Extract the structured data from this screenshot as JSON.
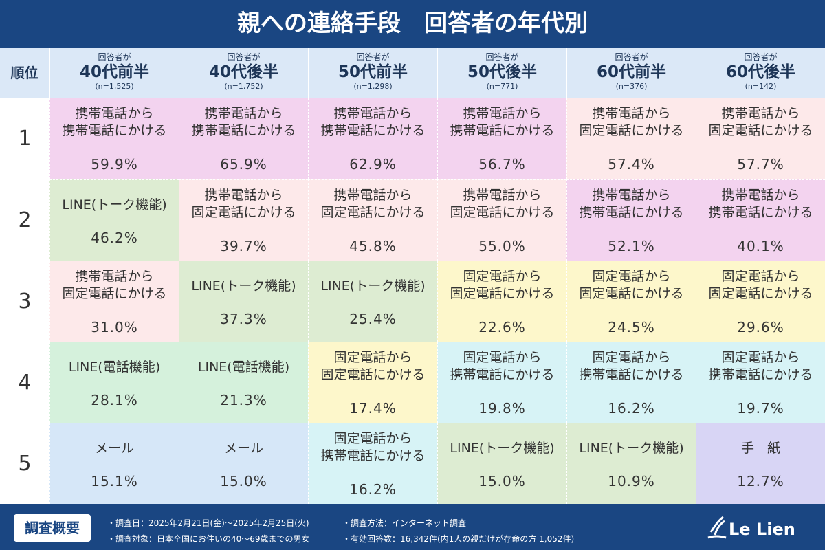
{
  "title": "親への連絡手段　回答者の年代別",
  "table": {
    "rank_header": "順位",
    "columns": [
      {
        "pre": "回答者が",
        "label": "40代前半",
        "n": "(n=1,525)"
      },
      {
        "pre": "回答者が",
        "label": "40代後半",
        "n": "(n=1,752)"
      },
      {
        "pre": "回答者が",
        "label": "50代前半",
        "n": "(n=1,298)"
      },
      {
        "pre": "回答者が",
        "label": "50代後半",
        "n": "(n=771)"
      },
      {
        "pre": "回答者が",
        "label": "60代前半",
        "n": "(n=376)"
      },
      {
        "pre": "回答者が",
        "label": "60代後半",
        "n": "(n=142)"
      }
    ],
    "rows": [
      {
        "rank": "1",
        "cells": [
          {
            "lines": [
              "携帯電話から",
              "携帯電話にかける"
            ],
            "pct": "59.9%",
            "color": "#f3d3ef"
          },
          {
            "lines": [
              "携帯電話から",
              "携帯電話にかける"
            ],
            "pct": "65.9%",
            "color": "#f3d3ef"
          },
          {
            "lines": [
              "携帯電話から",
              "携帯電話にかける"
            ],
            "pct": "62.9%",
            "color": "#f3d3ef"
          },
          {
            "lines": [
              "携帯電話から",
              "携帯電話にかける"
            ],
            "pct": "56.7%",
            "color": "#f3d3ef"
          },
          {
            "lines": [
              "携帯電話から",
              "固定電話にかける"
            ],
            "pct": "57.4%",
            "color": "#fde9ea"
          },
          {
            "lines": [
              "携帯電話から",
              "固定電話にかける"
            ],
            "pct": "57.7%",
            "color": "#fde9ea"
          }
        ]
      },
      {
        "rank": "2",
        "cells": [
          {
            "lines": [
              "LINE(トーク機能)"
            ],
            "pct": "46.2%",
            "color": "#ddecd2"
          },
          {
            "lines": [
              "携帯電話から",
              "固定電話にかける"
            ],
            "pct": "39.7%",
            "color": "#fde9ea"
          },
          {
            "lines": [
              "携帯電話から",
              "固定電話にかける"
            ],
            "pct": "45.8%",
            "color": "#fde9ea"
          },
          {
            "lines": [
              "携帯電話から",
              "固定電話にかける"
            ],
            "pct": "55.0%",
            "color": "#fde9ea"
          },
          {
            "lines": [
              "携帯電話から",
              "携帯電話にかける"
            ],
            "pct": "52.1%",
            "color": "#f3d3ef"
          },
          {
            "lines": [
              "携帯電話から",
              "携帯電話にかける"
            ],
            "pct": "40.1%",
            "color": "#f3d3ef"
          }
        ]
      },
      {
        "rank": "3",
        "cells": [
          {
            "lines": [
              "携帯電話から",
              "固定電話にかける"
            ],
            "pct": "31.0%",
            "color": "#fde9ea"
          },
          {
            "lines": [
              "LINE(トーク機能)"
            ],
            "pct": "37.3%",
            "color": "#ddecd2"
          },
          {
            "lines": [
              "LINE(トーク機能)"
            ],
            "pct": "25.4%",
            "color": "#ddecd2"
          },
          {
            "lines": [
              "固定電話から",
              "固定電話にかける"
            ],
            "pct": "22.6%",
            "color": "#fdf7cb"
          },
          {
            "lines": [
              "固定電話から",
              "固定電話にかける"
            ],
            "pct": "24.5%",
            "color": "#fdf7cb"
          },
          {
            "lines": [
              "固定電話から",
              "固定電話にかける"
            ],
            "pct": "29.6%",
            "color": "#fdf7cb"
          }
        ]
      },
      {
        "rank": "4",
        "cells": [
          {
            "lines": [
              "LINE(電話機能)"
            ],
            "pct": "28.1%",
            "color": "#d5f1dc"
          },
          {
            "lines": [
              "LINE(電話機能)"
            ],
            "pct": "21.3%",
            "color": "#d5f1dc"
          },
          {
            "lines": [
              "固定電話から",
              "固定電話にかける"
            ],
            "pct": "17.4%",
            "color": "#fdf7cb"
          },
          {
            "lines": [
              "固定電話から",
              "携帯電話にかける"
            ],
            "pct": "19.8%",
            "color": "#d7f3f6"
          },
          {
            "lines": [
              "固定電話から",
              "携帯電話にかける"
            ],
            "pct": "16.2%",
            "color": "#d7f3f6"
          },
          {
            "lines": [
              "固定電話から",
              "携帯電話にかける"
            ],
            "pct": "19.7%",
            "color": "#d7f3f6"
          }
        ]
      },
      {
        "rank": "5",
        "cells": [
          {
            "lines": [
              "メール"
            ],
            "pct": "15.1%",
            "color": "#d6e7f8"
          },
          {
            "lines": [
              "メール"
            ],
            "pct": "15.0%",
            "color": "#d6e7f8"
          },
          {
            "lines": [
              "固定電話から",
              "携帯電話にかける"
            ],
            "pct": "16.2%",
            "color": "#d7f3f6"
          },
          {
            "lines": [
              "LINE(トーク機能)"
            ],
            "pct": "15.0%",
            "color": "#ddecd2"
          },
          {
            "lines": [
              "LINE(トーク機能)"
            ],
            "pct": "10.9%",
            "color": "#ddecd2"
          },
          {
            "lines": [
              "手　紙"
            ],
            "pct": "12.7%",
            "color": "#d8d5f5"
          }
        ]
      }
    ]
  },
  "footer": {
    "label": "調査概要",
    "notes": [
      "・調査日：2025年2月21日(金)～2025年2月25日(火)",
      "・調査対象：日本全国にお住いの40～69歳までの男女",
      "・調査方法：インターネット調査",
      "・有効回答数：16,342件(内1人の親だけが存命の方 1,052件)"
    ],
    "logo": "Le Lien"
  }
}
